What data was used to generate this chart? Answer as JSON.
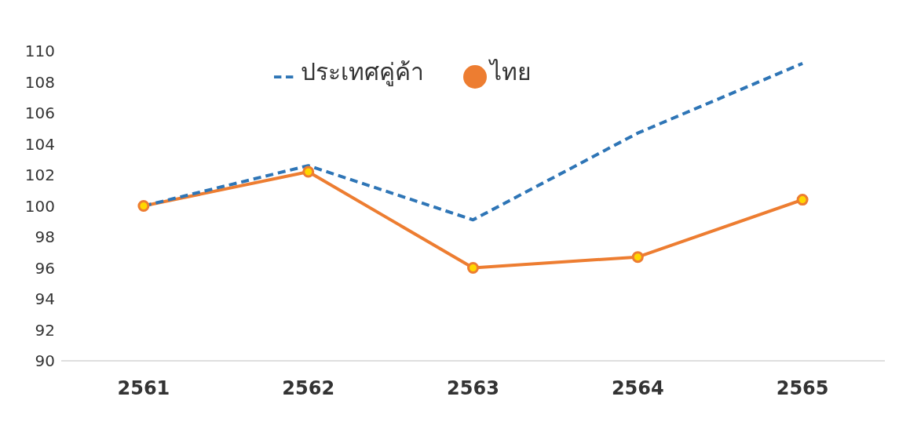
{
  "chart_data": {
    "type": "line",
    "categories": [
      "2561",
      "2562",
      "2563",
      "2564",
      "2565"
    ],
    "series": [
      {
        "name": "ไทย",
        "color": "#ed7d31",
        "values": [
          100.0,
          102.2,
          96.0,
          96.7,
          100.4
        ],
        "marker": "circle",
        "line_style": "solid"
      },
      {
        "name": "ประเทศคู่ค้า",
        "color": "#2e75b6",
        "values": [
          100.0,
          102.6,
          99.1,
          104.7,
          109.2
        ],
        "marker": "none",
        "line_style": "dashed"
      }
    ],
    "ylim": [
      90,
      110
    ],
    "yticks": [
      90,
      92,
      94,
      96,
      98,
      100,
      102,
      104,
      106,
      108,
      110
    ],
    "grid": false,
    "legend": "top"
  }
}
